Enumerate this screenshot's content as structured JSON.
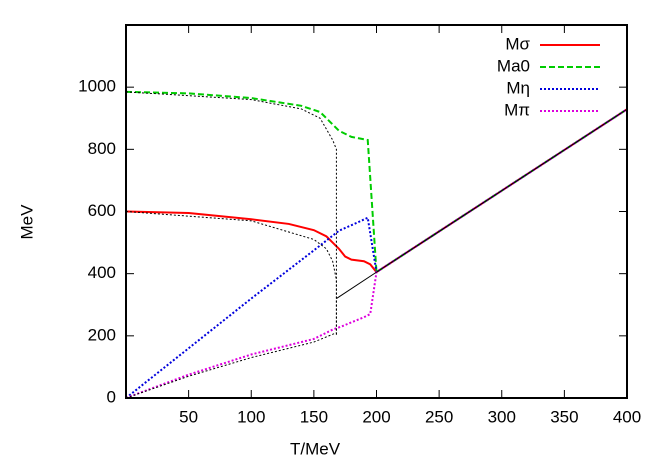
{
  "chart_data": {
    "type": "line",
    "xlabel": "T/MeV",
    "ylabel": "MeV",
    "xlim": [
      0,
      400
    ],
    "ylim": [
      0,
      1200
    ],
    "xticks": [
      50,
      100,
      150,
      200,
      250,
      300,
      350,
      400
    ],
    "yticks": [
      0,
      200,
      400,
      600,
      800,
      1000
    ],
    "grid": false,
    "legend": "top-right",
    "series": [
      {
        "name": "Mσ",
        "color": "#ff0000",
        "dash": "solid",
        "x": [
          0,
          50,
          100,
          130,
          150,
          160,
          165,
          170,
          175,
          180,
          190,
          195,
          200,
          250,
          300,
          350,
          400
        ],
        "values": [
          600,
          595,
          575,
          560,
          540,
          520,
          500,
          480,
          455,
          445,
          440,
          430,
          405,
          536,
          667,
          798,
          929
        ]
      },
      {
        "name": "Ma0",
        "color": "#00cc00",
        "dash": "dashed",
        "x": [
          0,
          50,
          100,
          140,
          155,
          165,
          170,
          180,
          193,
          200,
          250,
          300,
          350,
          400
        ],
        "values": [
          985,
          980,
          965,
          940,
          920,
          880,
          860,
          840,
          830,
          405,
          536,
          667,
          798,
          929
        ]
      },
      {
        "name": "Mη",
        "color": "#0000dd",
        "dash": "dotted",
        "x": [
          0,
          50,
          100,
          150,
          170,
          185,
          193,
          200,
          250,
          300,
          350,
          400
        ],
        "values": [
          0,
          160,
          320,
          475,
          538,
          565,
          580,
          405,
          536,
          667,
          798,
          929
        ]
      },
      {
        "name": "Mπ",
        "color": "#dd00dd",
        "dash": "dotted",
        "x": [
          0,
          50,
          100,
          150,
          165,
          172,
          190,
          195,
          200,
          250,
          300,
          350,
          400
        ],
        "values": [
          0,
          75,
          140,
          190,
          220,
          230,
          260,
          270,
          405,
          536,
          667,
          798,
          929
        ]
      },
      {
        "color": "#000000",
        "dash": "dotted",
        "x": [
          0,
          100,
          150,
          160,
          165,
          168,
          168
        ],
        "values": [
          600,
          570,
          510,
          480,
          440,
          380,
          200
        ]
      },
      {
        "color": "#000000",
        "dash": "dotted",
        "x": [
          0,
          100,
          140,
          155,
          165,
          168,
          168
        ],
        "values": [
          985,
          960,
          930,
          900,
          830,
          800,
          200
        ]
      },
      {
        "color": "#000000",
        "dash": "dotted",
        "x": [
          0,
          50,
          100,
          150,
          165,
          168
        ],
        "values": [
          0,
          70,
          130,
          180,
          205,
          210
        ]
      },
      {
        "color": "#000000",
        "dash": "solid",
        "x": [
          168,
          200,
          250,
          300,
          350,
          400
        ],
        "values": [
          320,
          405,
          536,
          667,
          798,
          929
        ]
      }
    ]
  }
}
